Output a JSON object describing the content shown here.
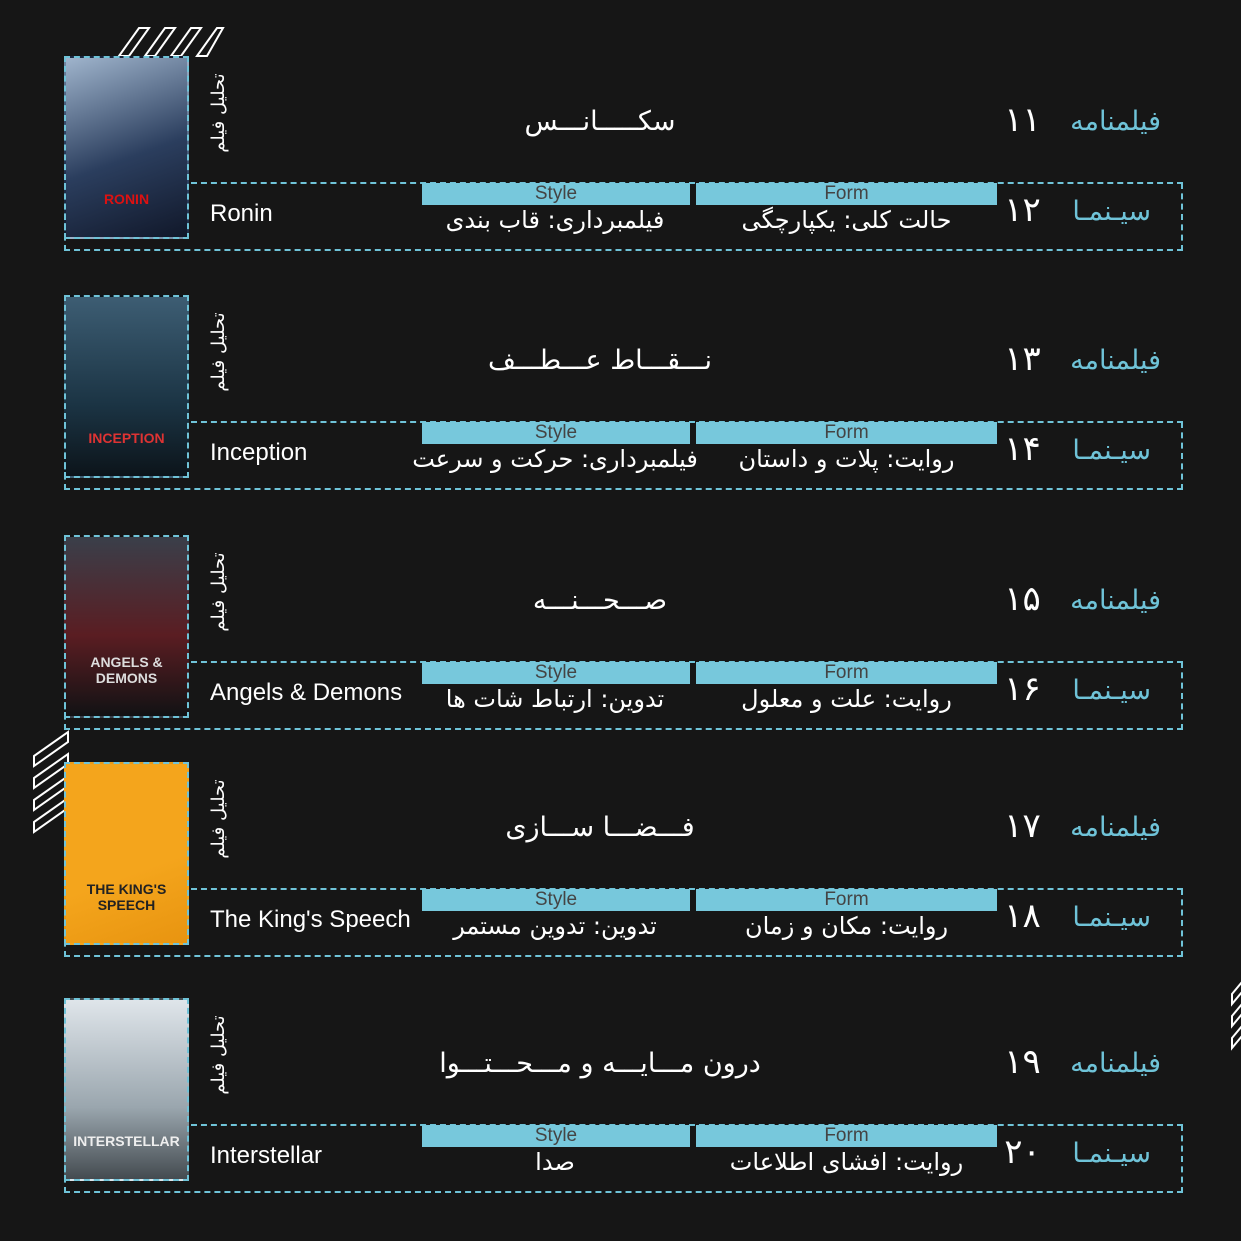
{
  "vertical_label": "تحلیل فیلم",
  "bar_labels": {
    "style": "Style",
    "form": "Form"
  },
  "colors": {
    "accent": "#77c8dc",
    "background": "#161616",
    "text": "#ffffff"
  },
  "rows": [
    {
      "film": "Ronin",
      "poster_title": "RONIN",
      "heading": "سکـــــانـــس",
      "script_label": "فیلمنامه",
      "script_num": "۱۱",
      "cinema_label": "سیـنمـا",
      "cinema_num": "۱۲",
      "style_value": "فیلمبرداری: قاب بندی",
      "form_value": "حالت کلی: یکپارچگی"
    },
    {
      "film": "Inception",
      "poster_title": "INCEPTION",
      "heading": "نـــقـــاط عـــطـــف",
      "script_label": "فیلمنامه",
      "script_num": "۱۳",
      "cinema_label": "سیـنمـا",
      "cinema_num": "۱۴",
      "style_value": "فیلمبرداری: حرکت و سرعت",
      "form_value": "روایت: پلات و داستان"
    },
    {
      "film": "Angels & Demons",
      "poster_title": "ANGELS & DEMONS",
      "heading": "صـــحـــنـــه",
      "script_label": "فیلمنامه",
      "script_num": "۱۵",
      "cinema_label": "سیـنمـا",
      "cinema_num": "۱۶",
      "style_value": "تدوین: ارتباط شات ها",
      "form_value": "روایت: علت و معلول"
    },
    {
      "film": "The King's Speech",
      "poster_title": "THE KING'S SPEECH",
      "heading": "فـــضـــا ســـازی",
      "script_label": "فیلمنامه",
      "script_num": "۱۷",
      "cinema_label": "سیـنمـا",
      "cinema_num": "۱۸",
      "style_value": "تدوین: تدوین مستمر",
      "form_value": "روایت: مکان و زمان"
    },
    {
      "film": "Interstellar",
      "poster_title": "INTERSTELLAR",
      "heading": "درون مـــایـــه و مـــحـــتـــوا",
      "script_label": "فیلمنامه",
      "script_num": "۱۹",
      "cinema_label": "سیـنمـا",
      "cinema_num": "۲۰",
      "style_value": "صدا",
      "form_value": "روایت: افشای اطلاعات"
    }
  ]
}
